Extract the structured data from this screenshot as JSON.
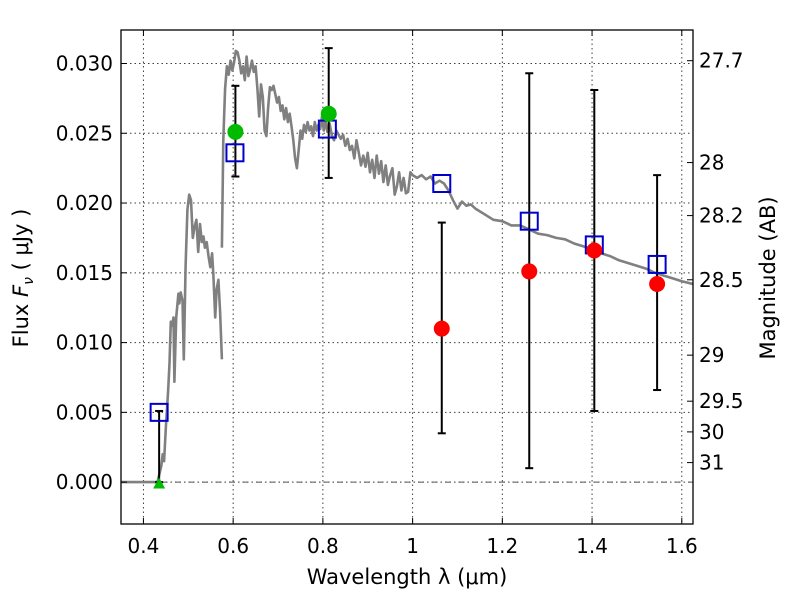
{
  "chart_data": {
    "type": "scatter",
    "xlabel": "Wavelength  λ (μm)",
    "ylabel": "Flux  F_ν  ( μJy )",
    "ylabel_parts": {
      "pre": "Flux ",
      "symbol": "F",
      "sub": "ν",
      "post": "  ( μJy )"
    },
    "y2label": "Magnitude (AB)",
    "xlim": [
      0.35,
      1.625
    ],
    "ylim": [
      -0.003,
      0.0324
    ],
    "x_ticks": [
      0.4,
      0.6,
      0.8,
      1.0,
      1.2,
      1.4,
      1.6
    ],
    "x_tick_labels": [
      "0.4",
      "0.6",
      "0.8",
      "1",
      "1.2",
      "1.4",
      "1.6"
    ],
    "y_ticks": [
      0.0,
      0.005,
      0.01,
      0.015,
      0.02,
      0.025,
      0.03
    ],
    "y_tick_labels": [
      "0.000",
      "0.005",
      "0.010",
      "0.015",
      "0.020",
      "0.025",
      "0.030"
    ],
    "y2_ticks": [
      {
        "label": "27.7",
        "flux": 0.0302
      },
      {
        "label": "28",
        "flux": 0.0229
      },
      {
        "label": "28.2",
        "flux": 0.0191
      },
      {
        "label": "28.5",
        "flux": 0.0145
      },
      {
        "label": "29",
        "flux": 0.0091
      },
      {
        "label": "29.5",
        "flux": 0.0058
      },
      {
        "label": "30",
        "flux": 0.0036
      },
      {
        "label": "31",
        "flux": 0.0014
      }
    ],
    "grid": true,
    "colors": {
      "model": "#808080",
      "errorbar": "#000000",
      "detected": "#ff0000",
      "optical": "#00bb00",
      "model_band": "#0000cc",
      "zero_line": "#555555"
    },
    "series": [
      {
        "kind": "line",
        "values": [
          [
            0.35,
            0.0
          ],
          [
            0.39,
            0.0
          ],
          [
            0.43,
            0.0
          ],
          [
            0.432,
            0.0001
          ],
          [
            0.44,
            0.0012
          ],
          [
            0.443,
            0.002
          ],
          [
            0.446,
            0.0015
          ],
          [
            0.45,
            0.004
          ],
          [
            0.455,
            0.0065
          ],
          [
            0.458,
            0.0085
          ],
          [
            0.461,
            0.0115
          ],
          [
            0.464,
            0.0112
          ],
          [
            0.467,
            0.0118
          ],
          [
            0.469,
            0.0072
          ],
          [
            0.473,
            0.0118
          ],
          [
            0.478,
            0.0135
          ],
          [
            0.48,
            0.0128
          ],
          [
            0.483,
            0.0136
          ],
          [
            0.487,
            0.013
          ],
          [
            0.49,
            0.0088
          ],
          [
            0.494,
            0.0155
          ],
          [
            0.498,
            0.0195
          ],
          [
            0.502,
            0.0206
          ],
          [
            0.506,
            0.0202
          ],
          [
            0.51,
            0.0175
          ],
          [
            0.514,
            0.0183
          ],
          [
            0.518,
            0.0188
          ],
          [
            0.522,
            0.0165
          ],
          [
            0.526,
            0.0185
          ],
          [
            0.53,
            0.0172
          ],
          [
            0.534,
            0.0176
          ],
          [
            0.537,
            0.0168
          ],
          [
            0.541,
            0.0172
          ],
          [
            0.545,
            0.0162
          ],
          [
            0.549,
            0.0154
          ],
          [
            0.553,
            0.0164
          ],
          [
            0.556,
            0.0148
          ],
          [
            0.56,
            0.0118
          ],
          [
            0.563,
            0.0138
          ],
          [
            0.567,
            0.0145
          ],
          [
            0.571,
            0.0122
          ],
          [
            0.575,
            0.0088
          ]
        ]
      },
      {
        "kind": "line",
        "values": [
          [
            0.575,
            0.0168
          ],
          [
            0.578,
            0.0245
          ],
          [
            0.582,
            0.0282
          ],
          [
            0.586,
            0.0298
          ],
          [
            0.59,
            0.0292
          ],
          [
            0.594,
            0.0302
          ],
          [
            0.598,
            0.0295
          ],
          [
            0.602,
            0.0301
          ],
          [
            0.606,
            0.0309
          ],
          [
            0.61,
            0.0308
          ],
          [
            0.614,
            0.0302
          ],
          [
            0.618,
            0.0293
          ],
          [
            0.622,
            0.0298
          ],
          [
            0.626,
            0.0288
          ],
          [
            0.63,
            0.0305
          ],
          [
            0.634,
            0.0291
          ],
          [
            0.638,
            0.0296
          ],
          [
            0.642,
            0.0302
          ],
          [
            0.646,
            0.0294
          ],
          [
            0.65,
            0.0298
          ],
          [
            0.654,
            0.0282
          ],
          [
            0.658,
            0.0262
          ],
          [
            0.662,
            0.0285
          ],
          [
            0.666,
            0.0276
          ],
          [
            0.67,
            0.0252
          ],
          [
            0.674,
            0.0248
          ],
          [
            0.678,
            0.0268
          ],
          [
            0.682,
            0.0283
          ],
          [
            0.686,
            0.0281
          ],
          [
            0.69,
            0.0284
          ],
          [
            0.694,
            0.0278
          ],
          [
            0.698,
            0.0272
          ],
          [
            0.702,
            0.0276
          ],
          [
            0.706,
            0.0266
          ],
          [
            0.71,
            0.027
          ],
          [
            0.714,
            0.026
          ],
          [
            0.718,
            0.0268
          ],
          [
            0.722,
            0.0258
          ],
          [
            0.726,
            0.0264
          ],
          [
            0.73,
            0.0255
          ],
          [
            0.734,
            0.0245
          ],
          [
            0.738,
            0.0232
          ],
          [
            0.742,
            0.0225
          ],
          [
            0.746,
            0.0238
          ],
          [
            0.75,
            0.0252
          ],
          [
            0.754,
            0.0246
          ],
          [
            0.758,
            0.0256
          ],
          [
            0.762,
            0.0251
          ],
          [
            0.766,
            0.0258
          ],
          [
            0.77,
            0.0252
          ],
          [
            0.774,
            0.0255
          ],
          [
            0.778,
            0.0248
          ],
          [
            0.782,
            0.0258
          ],
          [
            0.786,
            0.0252
          ],
          [
            0.79,
            0.0256
          ],
          [
            0.794,
            0.0253
          ],
          [
            0.798,
            0.0262
          ],
          [
            0.802,
            0.0252
          ],
          [
            0.806,
            0.0259
          ],
          [
            0.81,
            0.0251
          ],
          [
            0.815,
            0.0257
          ],
          [
            0.82,
            0.0248
          ],
          [
            0.825,
            0.0245
          ],
          [
            0.83,
            0.0252
          ],
          [
            0.835,
            0.0249
          ],
          [
            0.84,
            0.0246
          ],
          [
            0.845,
            0.0249
          ],
          [
            0.85,
            0.0241
          ],
          [
            0.855,
            0.0246
          ],
          [
            0.86,
            0.0238
          ],
          [
            0.865,
            0.0241
          ],
          [
            0.87,
            0.0232
          ],
          [
            0.875,
            0.0245
          ],
          [
            0.88,
            0.0236
          ],
          [
            0.885,
            0.0227
          ],
          [
            0.89,
            0.0234
          ],
          [
            0.895,
            0.0226
          ],
          [
            0.9,
            0.0236
          ],
          [
            0.905,
            0.0222
          ],
          [
            0.91,
            0.0231
          ],
          [
            0.915,
            0.0218
          ],
          [
            0.92,
            0.0234
          ],
          [
            0.925,
            0.0221
          ],
          [
            0.93,
            0.023
          ],
          [
            0.935,
            0.0215
          ],
          [
            0.94,
            0.0227
          ],
          [
            0.945,
            0.0213
          ],
          [
            0.95,
            0.022
          ],
          [
            0.955,
            0.0225
          ],
          [
            0.96,
            0.0206
          ],
          [
            0.965,
            0.0212
          ],
          [
            0.97,
            0.0222
          ],
          [
            0.975,
            0.0209
          ],
          [
            0.98,
            0.0218
          ],
          [
            0.985,
            0.0207
          ],
          [
            0.99,
            0.0208
          ],
          [
            0.995,
            0.0222
          ],
          [
            1.0,
            0.022
          ],
          [
            1.01,
            0.0218
          ],
          [
            1.02,
            0.022
          ],
          [
            1.03,
            0.0217
          ],
          [
            1.04,
            0.0219
          ],
          [
            1.05,
            0.0214
          ],
          [
            1.06,
            0.0216
          ],
          [
            1.07,
            0.0214
          ],
          [
            1.08,
            0.0209
          ],
          [
            1.09,
            0.0202
          ],
          [
            1.1,
            0.0196
          ],
          [
            1.11,
            0.0201
          ],
          [
            1.12,
            0.0198
          ],
          [
            1.13,
            0.0199
          ],
          [
            1.14,
            0.0196
          ],
          [
            1.16,
            0.0192
          ],
          [
            1.18,
            0.0188
          ],
          [
            1.2,
            0.0187
          ],
          [
            1.22,
            0.0184
          ],
          [
            1.24,
            0.0184
          ],
          [
            1.26,
            0.0181
          ],
          [
            1.28,
            0.0178
          ],
          [
            1.3,
            0.0177
          ],
          [
            1.32,
            0.0175
          ],
          [
            1.34,
            0.0174
          ],
          [
            1.36,
            0.0171
          ],
          [
            1.38,
            0.0169
          ],
          [
            1.4,
            0.0167
          ],
          [
            1.42,
            0.0164
          ],
          [
            1.44,
            0.0162
          ],
          [
            1.46,
            0.0159
          ],
          [
            1.48,
            0.0157
          ],
          [
            1.5,
            0.0155
          ],
          [
            1.52,
            0.0153
          ],
          [
            1.54,
            0.015
          ],
          [
            1.56,
            0.0148
          ],
          [
            1.58,
            0.0146
          ],
          [
            1.6,
            0.0144
          ],
          [
            1.625,
            0.0142
          ]
        ]
      },
      {
        "kind": "errorbar",
        "values": [
          {
            "x": 0.605,
            "lo": 0.0219,
            "hi": 0.0284
          },
          {
            "x": 0.813,
            "lo": 0.0218,
            "hi": 0.0311
          },
          {
            "x": 1.065,
            "lo": 0.0035,
            "hi": 0.0186
          },
          {
            "x": 1.26,
            "lo": 0.001,
            "hi": 0.0293
          },
          {
            "x": 1.405,
            "lo": 0.0051,
            "hi": 0.0281
          },
          {
            "x": 1.545,
            "lo": 0.0066,
            "hi": 0.022
          },
          {
            "x": 0.435,
            "lo": 0.0,
            "hi": 0.0051
          }
        ]
      },
      {
        "kind": "square",
        "values": [
          [
            0.435,
            0.005
          ],
          [
            0.604,
            0.0236
          ],
          [
            0.81,
            0.0253
          ],
          [
            1.065,
            0.0214
          ],
          [
            1.26,
            0.0187
          ],
          [
            1.405,
            0.017
          ],
          [
            1.545,
            0.0156
          ]
        ]
      },
      {
        "kind": "circle-red",
        "values": [
          [
            1.065,
            0.011
          ],
          [
            1.26,
            0.0151
          ],
          [
            1.405,
            0.0166
          ],
          [
            1.545,
            0.0142
          ]
        ]
      },
      {
        "kind": "circle-green",
        "values": [
          [
            0.605,
            0.0251
          ],
          [
            0.813,
            0.0264
          ]
        ]
      },
      {
        "kind": "triangle-green",
        "values": [
          [
            0.435,
            -0.0001
          ]
        ]
      }
    ]
  }
}
